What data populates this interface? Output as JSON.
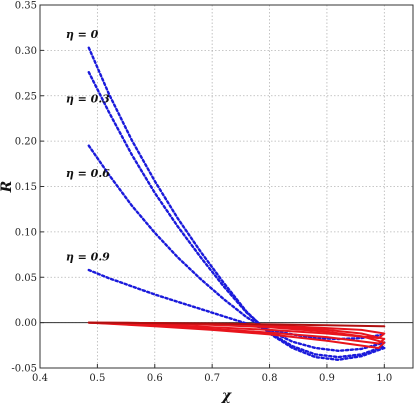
{
  "chart_data": {
    "type": "line",
    "title": "",
    "xlabel": "χ",
    "ylabel": "R",
    "xlim": [
      0.4,
      1.05
    ],
    "ylim": [
      -0.05,
      0.35
    ],
    "grid": true,
    "x_ticks": [
      0.4,
      0.5,
      0.6,
      0.7,
      0.8,
      0.9,
      1.0
    ],
    "x_tick_labels": [
      "0.4",
      "0.5",
      "0.6",
      "0.7",
      "0.8",
      "0.9",
      "1.0"
    ],
    "y_ticks": [
      -0.05,
      0.0,
      0.05,
      0.1,
      0.15,
      0.2,
      0.25,
      0.3,
      0.35
    ],
    "y_tick_labels": [
      "-0.05",
      "0.00",
      "0.05",
      "0.10",
      "0.15",
      "0.20",
      "0.25",
      "0.30",
      "0.35"
    ],
    "zero_line": 0.0,
    "annotations": [
      {
        "text": "η = 0",
        "x": 0.445,
        "y": 0.318
      },
      {
        "text": "η = 0.3",
        "x": 0.445,
        "y": 0.247
      },
      {
        "text": "η = 0.6",
        "x": 0.445,
        "y": 0.165
      },
      {
        "text": "η = 0.9",
        "x": 0.445,
        "y": 0.073
      }
    ],
    "series": [
      {
        "style": "dotted",
        "color": "#1a1adb",
        "x": [
          0.485,
          0.52,
          0.56,
          0.6,
          0.64,
          0.68,
          0.72,
          0.76,
          0.8,
          0.84,
          0.88,
          0.92,
          0.96,
          1.0
        ],
        "y": [
          0.303,
          0.252,
          0.201,
          0.156,
          0.115,
          0.078,
          0.044,
          0.012,
          -0.012,
          -0.028,
          -0.038,
          -0.041,
          -0.037,
          -0.028
        ]
      },
      {
        "style": "dotted",
        "color": "#1a1adb",
        "x": [
          0.485,
          0.52,
          0.56,
          0.6,
          0.64,
          0.68,
          0.72,
          0.76,
          0.8,
          0.84,
          0.88,
          0.92,
          0.96,
          1.0
        ],
        "y": [
          0.276,
          0.232,
          0.185,
          0.143,
          0.106,
          0.072,
          0.04,
          0.011,
          -0.011,
          -0.026,
          -0.035,
          -0.038,
          -0.035,
          -0.026
        ]
      },
      {
        "style": "dotted",
        "color": "#1a1adb",
        "x": [
          0.485,
          0.52,
          0.56,
          0.6,
          0.64,
          0.68,
          0.72,
          0.76,
          0.8,
          0.84,
          0.88,
          0.92,
          0.96,
          1.0
        ],
        "y": [
          0.195,
          0.163,
          0.129,
          0.099,
          0.072,
          0.048,
          0.026,
          0.006,
          -0.009,
          -0.021,
          -0.028,
          -0.031,
          -0.029,
          -0.022
        ]
      },
      {
        "style": "dotted",
        "color": "#1a1adb",
        "x": [
          0.485,
          0.52,
          0.56,
          0.6,
          0.64,
          0.68,
          0.72,
          0.76,
          0.8,
          0.84,
          0.88,
          0.92,
          0.96,
          1.0
        ],
        "y": [
          0.058,
          0.049,
          0.04,
          0.031,
          0.023,
          0.015,
          0.007,
          -0.001,
          -0.008,
          -0.013,
          -0.017,
          -0.018,
          -0.017,
          -0.013
        ]
      },
      {
        "style": "solid",
        "color": "#e8141c",
        "x": [
          0.485,
          0.6,
          0.7,
          0.8,
          0.9,
          0.96,
          1.0,
          0.99,
          0.9,
          0.8,
          0.7,
          0.6,
          0.485
        ],
        "y": [
          0.0,
          -0.0005,
          -0.0015,
          -0.003,
          -0.006,
          -0.008,
          -0.012,
          -0.017,
          -0.012,
          -0.008,
          -0.005,
          -0.002,
          0.0
        ]
      },
      {
        "style": "solid",
        "color": "#e8141c",
        "x": [
          0.485,
          0.6,
          0.7,
          0.8,
          0.9,
          0.96,
          1.0,
          0.99,
          0.9,
          0.8,
          0.7,
          0.6,
          0.485
        ],
        "y": [
          0.0,
          -0.0005,
          -0.002,
          -0.004,
          -0.008,
          -0.012,
          -0.018,
          -0.023,
          -0.016,
          -0.011,
          -0.007,
          -0.003,
          0.0
        ]
      },
      {
        "style": "solid",
        "color": "#e8141c",
        "x": [
          0.485,
          0.6,
          0.7,
          0.8,
          0.9,
          0.96,
          1.0,
          0.99,
          0.9,
          0.8,
          0.7,
          0.6,
          0.485
        ],
        "y": [
          0.0,
          -0.001,
          -0.0025,
          -0.005,
          -0.01,
          -0.015,
          -0.022,
          -0.028,
          -0.02,
          -0.013,
          -0.008,
          -0.004,
          0.0
        ]
      },
      {
        "style": "solid",
        "color": "#b01010",
        "x": [
          0.485,
          0.6,
          0.7,
          0.8,
          0.9,
          1.0
        ],
        "y": [
          0.0,
          -0.0005,
          -0.001,
          -0.002,
          -0.003,
          -0.004
        ]
      }
    ]
  }
}
